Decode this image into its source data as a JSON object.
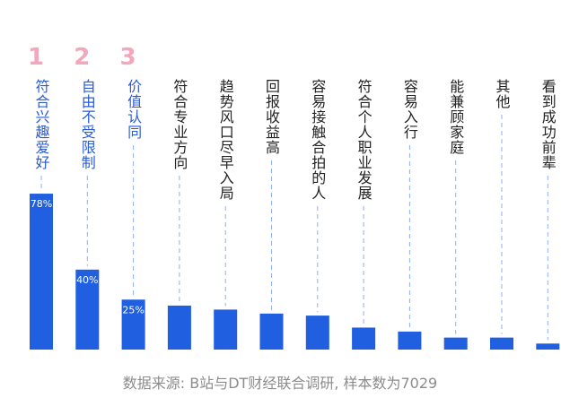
{
  "chart_data": {
    "type": "bar",
    "categories": [
      "符合兴趣爱好",
      "自由不受限制",
      "价值认同",
      "符合专业方向",
      "趋势风口尽早入局",
      "回报收益高",
      "容易接触合拍的人",
      "符合个人职业发展",
      "容易入行",
      "能兼顾家庭",
      "其他",
      "看到成功前辈"
    ],
    "values": [
      78,
      40,
      25,
      22,
      20,
      18,
      17,
      11,
      9,
      6,
      6,
      3
    ],
    "value_labels": [
      "78%",
      "40%",
      "25%",
      null,
      null,
      null,
      null,
      null,
      null,
      null,
      null,
      null
    ],
    "ranks": [
      "1",
      "2",
      "3"
    ],
    "color": "#1f5fe0",
    "highlight_color": "#2a5bd7",
    "rank_color": "#f2a7bd",
    "source": "数据来源: B站与DT财经联合调研, 样本数为7029"
  }
}
